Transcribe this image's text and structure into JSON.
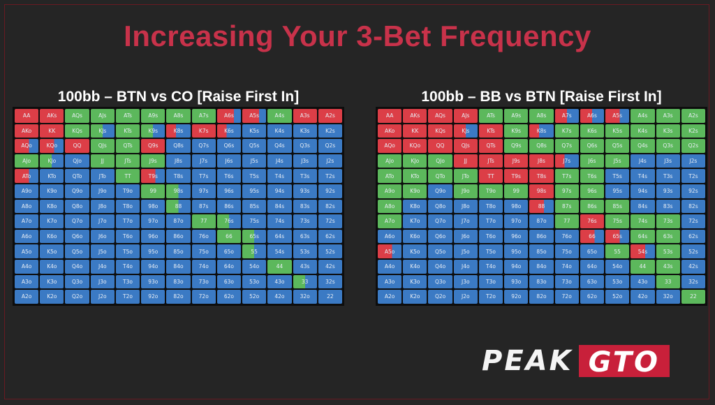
{
  "title": "Increasing Your 3-Bet Frequency",
  "colors": {
    "red": "#dc3e47",
    "green": "#5cb85c",
    "blue": "#3b7ac4",
    "title": "#c8324a"
  },
  "logo": {
    "part1": "PEAK",
    "part2": "GTO"
  },
  "charts": [
    {
      "title": "100bb – BTN vs CO [Raise First In]",
      "grid": [
        [
          "R",
          "R",
          "G",
          "G",
          "G",
          "G",
          "G",
          "GR",
          "R:0.7",
          "R:0.7",
          "G",
          "R",
          "R"
        ],
        [
          "R",
          "R",
          "G",
          "G:0.5",
          "G",
          "G:0.5",
          "R:0.4",
          "R",
          "R:0.4",
          "B",
          "B",
          "B",
          "B"
        ],
        [
          "R:0.6",
          "R:0.6",
          "R",
          "G",
          "G",
          "R",
          "B",
          "B",
          "B",
          "B",
          "B",
          "B",
          "B"
        ],
        [
          "G",
          "G:0.5",
          "B",
          "G",
          "G",
          "G",
          "B",
          "B",
          "B",
          "B",
          "B",
          "B",
          "B"
        ],
        [
          "R:0.6",
          "B",
          "B",
          "B",
          "G",
          "R:0.6",
          "B",
          "B",
          "B",
          "B",
          "B",
          "B",
          "B"
        ],
        [
          "B",
          "B",
          "B",
          "B",
          "B",
          "G",
          "G:0.5",
          "B",
          "B",
          "B",
          "B",
          "B",
          "B"
        ],
        [
          "B",
          "B",
          "B",
          "B",
          "B",
          "B",
          "G:0.5",
          "B",
          "B",
          "B",
          "B",
          "B",
          "B"
        ],
        [
          "B",
          "B",
          "B",
          "B",
          "B",
          "B",
          "B",
          "G",
          "G:0.5",
          "B",
          "B",
          "B",
          "B"
        ],
        [
          "B",
          "B",
          "B",
          "B",
          "B",
          "B",
          "B",
          "B",
          "G",
          "G:0.5",
          "B",
          "B",
          "B"
        ],
        [
          "B",
          "B",
          "B",
          "B",
          "B",
          "B",
          "B",
          "B",
          "B",
          "G:0.5",
          "B",
          "B",
          "B"
        ],
        [
          "B",
          "B",
          "B",
          "B",
          "B",
          "B",
          "B",
          "B",
          "B",
          "B",
          "G",
          "B",
          "B"
        ],
        [
          "B",
          "B",
          "B",
          "B",
          "B",
          "B",
          "B",
          "B",
          "B",
          "B",
          "B",
          "G:0.5",
          "B"
        ],
        [
          "B",
          "B",
          "B",
          "B",
          "B",
          "B",
          "B",
          "B",
          "B",
          "B",
          "B",
          "B",
          "B"
        ]
      ]
    },
    {
      "title": "100bb – BB vs BTN [Raise First In]",
      "grid": [
        [
          "R",
          "R",
          "R",
          "R",
          "G",
          "G",
          "G",
          "R:0.5",
          "R:0.5",
          "R:0.6",
          "G",
          "G",
          "G"
        ],
        [
          "R",
          "R",
          "R",
          "R:0.5",
          "R",
          "G",
          "R:0.4",
          "G",
          "G",
          "G",
          "G",
          "G",
          "G"
        ],
        [
          "R",
          "R",
          "R",
          "R",
          "R",
          "G",
          "G",
          "G",
          "G",
          "G",
          "G",
          "G",
          "G"
        ],
        [
          "G",
          "G",
          "G",
          "R",
          "R",
          "R",
          "R",
          "R:0.4",
          "G",
          "G",
          "B",
          "B",
          "B"
        ],
        [
          "G",
          "G",
          "G",
          "G",
          "R",
          "R",
          "R",
          "G",
          "G",
          "B",
          "B",
          "B",
          "B"
        ],
        [
          "G",
          "G",
          "B",
          "G",
          "G",
          "G",
          "R",
          "G",
          "G",
          "B",
          "B",
          "B",
          "B"
        ],
        [
          "G",
          "B",
          "B",
          "B",
          "B",
          "B",
          "R:0.6",
          "G",
          "G",
          "G",
          "B",
          "B",
          "B"
        ],
        [
          "G",
          "B",
          "B",
          "B",
          "B",
          "B",
          "B",
          "G",
          "R",
          "G",
          "G",
          "G",
          "B"
        ],
        [
          "B",
          "B",
          "B",
          "B",
          "B",
          "B",
          "B",
          "B",
          "R:0.6",
          "R:0.6",
          "G",
          "G",
          "B"
        ],
        [
          "R:0.6",
          "B",
          "B",
          "B",
          "B",
          "B",
          "B",
          "B",
          "B",
          "G",
          "R:0.6",
          "G",
          "B"
        ],
        [
          "B",
          "B",
          "B",
          "B",
          "B",
          "B",
          "B",
          "B",
          "B",
          "B",
          "G",
          "G",
          "B"
        ],
        [
          "B",
          "B",
          "B",
          "B",
          "B",
          "B",
          "B",
          "B",
          "B",
          "B",
          "B",
          "G",
          "B"
        ],
        [
          "B",
          "B",
          "B",
          "B",
          "B",
          "B",
          "B",
          "B",
          "B",
          "B",
          "B",
          "B",
          "G"
        ]
      ]
    }
  ],
  "hands": [
    [
      "AA",
      "AKs",
      "AQs",
      "AJs",
      "ATs",
      "A9s",
      "A8s",
      "A7s",
      "A6s",
      "A5s",
      "A4s",
      "A3s",
      "A2s"
    ],
    [
      "AKo",
      "KK",
      "KQs",
      "KJs",
      "KTs",
      "K9s",
      "K8s",
      "K7s",
      "K6s",
      "K5s",
      "K4s",
      "K3s",
      "K2s"
    ],
    [
      "AQo",
      "KQo",
      "QQ",
      "QJs",
      "QTs",
      "Q9s",
      "Q8s",
      "Q7s",
      "Q6s",
      "Q5s",
      "Q4s",
      "Q3s",
      "Q2s"
    ],
    [
      "AJo",
      "KJo",
      "QJo",
      "JJ",
      "JTs",
      "J9s",
      "J8s",
      "J7s",
      "J6s",
      "J5s",
      "J4s",
      "J3s",
      "J2s"
    ],
    [
      "ATo",
      "KTo",
      "QTo",
      "JTo",
      "TT",
      "T9s",
      "T8s",
      "T7s",
      "T6s",
      "T5s",
      "T4s",
      "T3s",
      "T2s"
    ],
    [
      "A9o",
      "K9o",
      "Q9o",
      "J9o",
      "T9o",
      "99",
      "98s",
      "97s",
      "96s",
      "95s",
      "94s",
      "93s",
      "92s"
    ],
    [
      "A8o",
      "K8o",
      "Q8o",
      "J8o",
      "T8o",
      "98o",
      "88",
      "87s",
      "86s",
      "85s",
      "84s",
      "83s",
      "82s"
    ],
    [
      "A7o",
      "K7o",
      "Q7o",
      "J7o",
      "T7o",
      "97o",
      "87o",
      "77",
      "76s",
      "75s",
      "74s",
      "73s",
      "72s"
    ],
    [
      "A6o",
      "K6o",
      "Q6o",
      "J6o",
      "T6o",
      "96o",
      "86o",
      "76o",
      "66",
      "65s",
      "64s",
      "63s",
      "62s"
    ],
    [
      "A5o",
      "K5o",
      "Q5o",
      "J5o",
      "T5o",
      "95o",
      "85o",
      "75o",
      "65o",
      "55",
      "54s",
      "53s",
      "52s"
    ],
    [
      "A4o",
      "K4o",
      "Q4o",
      "J4o",
      "T4o",
      "94o",
      "84o",
      "74o",
      "64o",
      "54o",
      "44",
      "43s",
      "42s"
    ],
    [
      "A3o",
      "K3o",
      "Q3o",
      "J3o",
      "T3o",
      "93o",
      "83o",
      "73o",
      "63o",
      "53o",
      "43o",
      "33",
      "32s"
    ],
    [
      "A2o",
      "K2o",
      "Q2o",
      "J2o",
      "T2o",
      "92o",
      "82o",
      "72o",
      "62o",
      "52o",
      "42o",
      "32o",
      "22"
    ]
  ]
}
